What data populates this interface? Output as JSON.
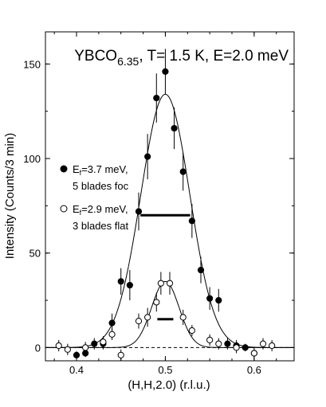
{
  "chart_data": {
    "type": "scatter",
    "title": {
      "main": "YBCO",
      "subscript": "6.35",
      "suffix": ", T= 1.5 K, E=2.0 meV"
    },
    "xlabel": "(H,H,2.0) (r.l.u.)",
    "ylabel": "Intensity (Counts/3 min)",
    "xlim": [
      0.365,
      0.645
    ],
    "ylim": [
      -7,
      167
    ],
    "x_ticks": [
      0.4,
      0.5,
      0.6
    ],
    "x_tick_labels": [
      "0.4",
      "0.5",
      "0.6"
    ],
    "y_ticks": [
      0,
      50,
      100,
      150
    ],
    "y_tick_labels": [
      "0",
      "50",
      "100",
      "150"
    ],
    "x_minor_tick_step": 0.025,
    "y_minor_tick_step": 25,
    "grid": false,
    "legend_position": "left",
    "zero_line": "dashed",
    "series": [
      {
        "name": "Ef=3.7 meV, 5 blades foc",
        "legend_main": "E",
        "legend_sub": "f",
        "legend_rest": "=3.7 meV,",
        "legend_line2": "5 blades foc",
        "marker": "filled-circle",
        "x": [
          0.4,
          0.41,
          0.42,
          0.43,
          0.44,
          0.45,
          0.46,
          0.47,
          0.48,
          0.49,
          0.5,
          0.51,
          0.52,
          0.53,
          0.54,
          0.55,
          0.56,
          0.57,
          0.58,
          0.59,
          0.6
        ],
        "y": [
          -4,
          -3,
          2,
          2,
          13,
          35,
          33,
          72,
          101,
          132,
          146,
          116,
          93,
          67,
          41,
          26,
          25,
          2,
          1,
          0,
          -3
        ],
        "err": [
          2,
          2,
          3,
          3,
          5,
          7,
          8,
          10,
          12,
          13,
          12,
          11,
          10,
          9,
          7,
          6,
          6,
          3,
          3,
          2,
          2
        ],
        "fit": {
          "amplitude": 134,
          "center": 0.5,
          "sigma": 0.0275
        },
        "fwhm_bar": {
          "x1": 0.472,
          "x2": 0.528,
          "y": 70
        }
      },
      {
        "name": "Ef=2.9 meV, 3 blades flat",
        "legend_main": "E",
        "legend_sub": "f",
        "legend_rest": "=2.9 meV,",
        "legend_line2": "3 blades flat",
        "marker": "open-circle",
        "x": [
          0.38,
          0.39,
          0.41,
          0.43,
          0.44,
          0.45,
          0.47,
          0.48,
          0.49,
          0.495,
          0.505,
          0.52,
          0.53,
          0.55,
          0.56,
          0.58,
          0.6,
          0.61,
          0.62
        ],
        "y": [
          1,
          -1,
          0,
          3,
          7,
          -4,
          14,
          16,
          24,
          34,
          34,
          16,
          9,
          4,
          2,
          0,
          -3,
          2,
          1
        ],
        "err": [
          3,
          3,
          3,
          3,
          3,
          3,
          4,
          5,
          5,
          6,
          6,
          4,
          3,
          3,
          3,
          3,
          3,
          3,
          3
        ],
        "fit": {
          "amplitude": 35,
          "center": 0.5,
          "sigma": 0.0155
        },
        "fwhm_bar": {
          "x1": 0.491,
          "x2": 0.509,
          "y": 15
        }
      }
    ]
  }
}
